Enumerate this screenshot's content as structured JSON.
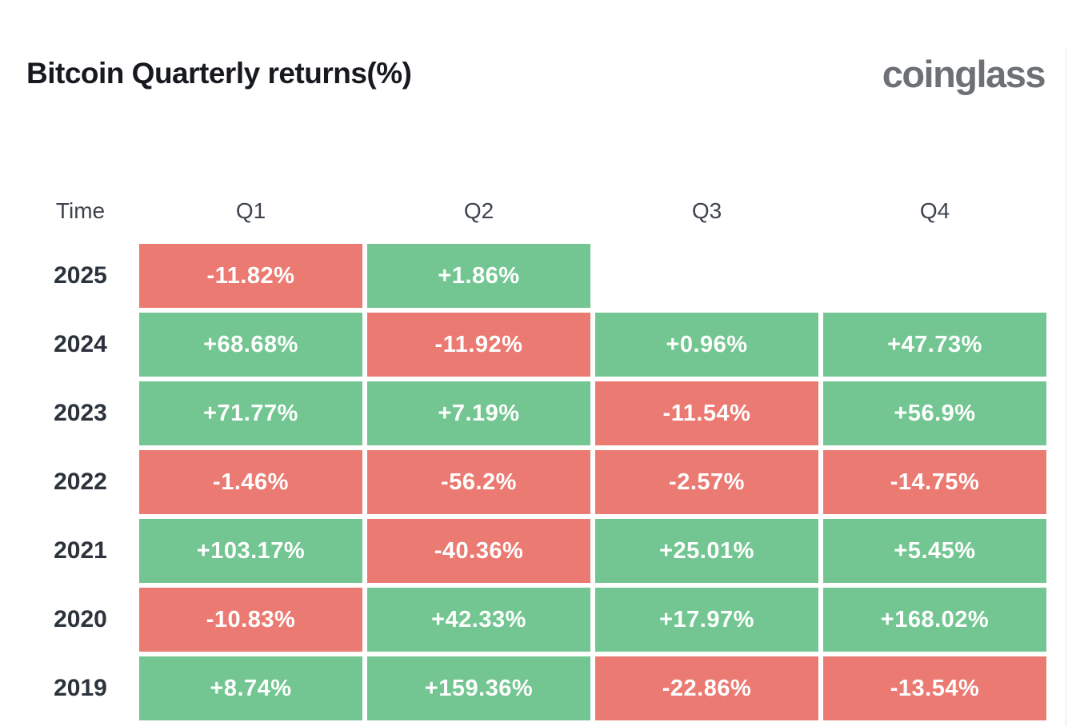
{
  "page": {
    "title": "Bitcoin Quarterly returns(%)",
    "logo": "coinglass"
  },
  "colors": {
    "positive": "#73c691",
    "negative": "#eb7a72",
    "cell_text": "#ffffff",
    "title_text": "#16191e",
    "logo_text": "#6d7176",
    "header_text": "#3e444d",
    "year_text": "#2d333c"
  },
  "table": {
    "columns": [
      "Time",
      "Q1",
      "Q2",
      "Q3",
      "Q4"
    ],
    "rows": [
      {
        "year": "2025",
        "cells": [
          {
            "label": "-11.82%",
            "sign": "negative"
          },
          {
            "label": "+1.86%",
            "sign": "positive"
          },
          null,
          null
        ]
      },
      {
        "year": "2024",
        "cells": [
          {
            "label": "+68.68%",
            "sign": "positive"
          },
          {
            "label": "-11.92%",
            "sign": "negative"
          },
          {
            "label": "+0.96%",
            "sign": "positive"
          },
          {
            "label": "+47.73%",
            "sign": "positive"
          }
        ]
      },
      {
        "year": "2023",
        "cells": [
          {
            "label": "+71.77%",
            "sign": "positive"
          },
          {
            "label": "+7.19%",
            "sign": "positive"
          },
          {
            "label": "-11.54%",
            "sign": "negative"
          },
          {
            "label": "+56.9%",
            "sign": "positive"
          }
        ]
      },
      {
        "year": "2022",
        "cells": [
          {
            "label": "-1.46%",
            "sign": "negative"
          },
          {
            "label": "-56.2%",
            "sign": "negative"
          },
          {
            "label": "-2.57%",
            "sign": "negative"
          },
          {
            "label": "-14.75%",
            "sign": "negative"
          }
        ]
      },
      {
        "year": "2021",
        "cells": [
          {
            "label": "+103.17%",
            "sign": "positive"
          },
          {
            "label": "-40.36%",
            "sign": "negative"
          },
          {
            "label": "+25.01%",
            "sign": "positive"
          },
          {
            "label": "+5.45%",
            "sign": "positive"
          }
        ]
      },
      {
        "year": "2020",
        "cells": [
          {
            "label": "-10.83%",
            "sign": "negative"
          },
          {
            "label": "+42.33%",
            "sign": "positive"
          },
          {
            "label": "+17.97%",
            "sign": "positive"
          },
          {
            "label": "+168.02%",
            "sign": "positive"
          }
        ]
      },
      {
        "year": "2019",
        "cells": [
          {
            "label": "+8.74%",
            "sign": "positive"
          },
          {
            "label": "+159.36%",
            "sign": "positive"
          },
          {
            "label": "-22.86%",
            "sign": "negative"
          },
          {
            "label": "-13.54%",
            "sign": "negative"
          }
        ]
      }
    ]
  },
  "chart_data": {
    "type": "heatmap",
    "title": "Bitcoin Quarterly returns(%)",
    "columns": [
      "Q1",
      "Q2",
      "Q3",
      "Q4"
    ],
    "years": [
      "2025",
      "2024",
      "2023",
      "2022",
      "2021",
      "2020",
      "2019"
    ],
    "values_pct": [
      [
        -11.82,
        1.86,
        null,
        null
      ],
      [
        68.68,
        -11.92,
        0.96,
        47.73
      ],
      [
        71.77,
        7.19,
        -11.54,
        56.9
      ],
      [
        -1.46,
        -56.2,
        -2.57,
        -14.75
      ],
      [
        103.17,
        -40.36,
        25.01,
        5.45
      ],
      [
        -10.83,
        42.33,
        17.97,
        168.02
      ],
      [
        8.74,
        159.36,
        -22.86,
        -13.54
      ]
    ],
    "positive_color": "#73c691",
    "negative_color": "#eb7a72",
    "legend": "green = positive quarterly return, red = negative quarterly return"
  }
}
